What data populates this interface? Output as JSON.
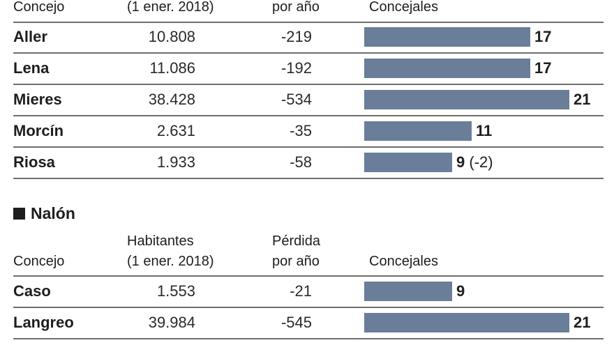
{
  "chart_data": [
    {
      "type": "table",
      "section": "",
      "columns": [
        "Concejo",
        "Habitantes (1 ener. 2018)",
        "Pérdida por año",
        "Concejales"
      ],
      "header": {
        "concejo": "Concejo",
        "habitantes_line2": "(1 ener. 2018)",
        "perdida_line2": "por año",
        "concejales": "Concejales"
      },
      "rows": [
        {
          "concejo": "Aller",
          "habitantes": "10.808",
          "perdida": "-219",
          "concejales": 17,
          "label": "17",
          "note": ""
        },
        {
          "concejo": "Lena",
          "habitantes": "11.086",
          "perdida": "-192",
          "concejales": 17,
          "label": "17",
          "note": ""
        },
        {
          "concejo": "Mieres",
          "habitantes": "38.428",
          "perdida": "-534",
          "concejales": 21,
          "label": "21",
          "note": ""
        },
        {
          "concejo": "Morcín",
          "habitantes": "2.631",
          "perdida": "-35",
          "concejales": 11,
          "label": "11",
          "note": ""
        },
        {
          "concejo": "Riosa",
          "habitantes": "1.933",
          "perdida": "-58",
          "concejales": 9,
          "label": "9",
          "note": "(-2)"
        }
      ]
    },
    {
      "type": "table",
      "section": "Nalón",
      "columns": [
        "Concejo",
        "Habitantes (1 ener. 2018)",
        "Pérdida por año",
        "Concejales"
      ],
      "header": {
        "concejo": "Concejo",
        "habitantes_line1": "Habitantes",
        "habitantes_line2": "(1 ener. 2018)",
        "perdida_line1": "Pérdida",
        "perdida_line2": "por año",
        "concejales": "Concejales"
      },
      "rows": [
        {
          "concejo": "Caso",
          "habitantes": "1.553",
          "perdida": "-21",
          "concejales": 9,
          "label": "9",
          "note": ""
        },
        {
          "concejo": "Langreo",
          "habitantes": "39.984",
          "perdida": "-545",
          "concejales": 21,
          "label": "21",
          "note": ""
        }
      ]
    }
  ],
  "colors": {
    "bar": "#6a7d99",
    "text": "#1e1e1e",
    "rule": "#6e6e6e"
  }
}
